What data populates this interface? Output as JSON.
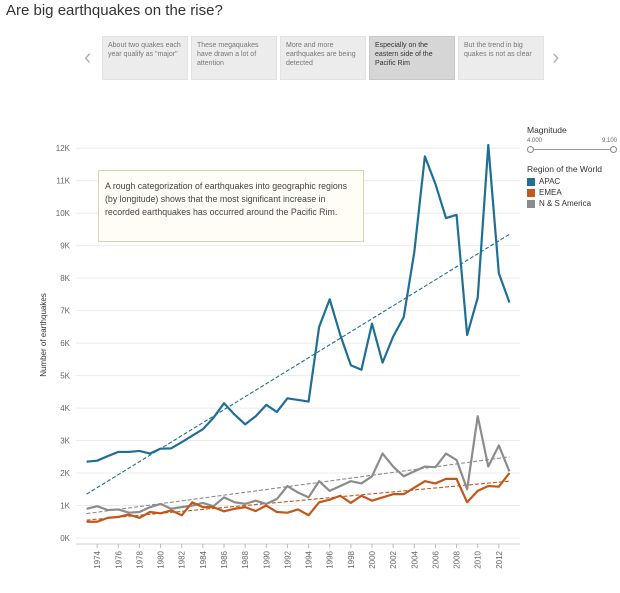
{
  "page": {
    "title": "Are big earthquakes on the rise?"
  },
  "story": {
    "prev_icon": "chevron-left-icon",
    "next_icon": "chevron-right-icon",
    "points": [
      {
        "text": "About two quakes each year qualify as \"major\"",
        "active": false
      },
      {
        "text": "These megaquakes have drawn a lot of attention",
        "active": false
      },
      {
        "text": "More and more earthquakes are being detected",
        "active": false
      },
      {
        "text": "Especially on the eastern side of the Pacific Rim",
        "active": true
      },
      {
        "text": "But the trend in big quakes is not as clear",
        "active": false
      }
    ]
  },
  "legend": {
    "magnitude_title": "Magnitude",
    "magnitude_min": "4.000",
    "magnitude_max": "9.100",
    "region_title": "Region of the World",
    "regions": [
      {
        "name": "APAC",
        "color": "#1f6e96"
      },
      {
        "name": "EMEA",
        "color": "#c2571a"
      },
      {
        "name": "N & S America",
        "color": "#8c8c8c"
      }
    ]
  },
  "annotation": {
    "text": "A rough categorization of earthquakes into geographic regions (by longitude) shows that the most significant increase in recorded earthquakes has occurred around the Pacific Rim."
  },
  "chart_data": {
    "type": "line",
    "ylabel": "Number of earthquakes",
    "xlabel": "",
    "ylim": [
      0,
      12500
    ],
    "yticks": [
      0,
      1000,
      2000,
      3000,
      4000,
      5000,
      6000,
      7000,
      8000,
      9000,
      10000,
      11000,
      12000
    ],
    "ytick_labels": [
      "0K",
      "1K",
      "2K",
      "3K",
      "4K",
      "5K",
      "6K",
      "7K",
      "8K",
      "9K",
      "10K",
      "11K",
      "12K"
    ],
    "xlim": [
      1972,
      2014
    ],
    "xticks": [
      1974,
      1976,
      1978,
      1980,
      1982,
      1984,
      1986,
      1988,
      1990,
      1992,
      1994,
      1996,
      1998,
      2000,
      2002,
      2004,
      2006,
      2008,
      2010,
      2012
    ],
    "grid": "horizontal",
    "x": [
      1973,
      1974,
      1975,
      1976,
      1977,
      1978,
      1979,
      1980,
      1981,
      1982,
      1983,
      1984,
      1985,
      1986,
      1987,
      1988,
      1989,
      1990,
      1991,
      1992,
      1993,
      1994,
      1995,
      1996,
      1997,
      1998,
      1999,
      2000,
      2001,
      2002,
      2003,
      2004,
      2005,
      2006,
      2007,
      2008,
      2009,
      2010,
      2011,
      2012,
      2013
    ],
    "series": [
      {
        "name": "APAC",
        "color": "#1f6e96",
        "values": [
          2350,
          2380,
          2520,
          2650,
          2650,
          2680,
          2600,
          2750,
          2760,
          2950,
          3150,
          3350,
          3700,
          4150,
          3800,
          3500,
          3750,
          4100,
          3880,
          4300,
          4250,
          4200,
          6500,
          7350,
          6250,
          5320,
          5180,
          6600,
          5400,
          6200,
          6800,
          8800,
          11750,
          10900,
          9850,
          9950,
          6250,
          7400,
          12100,
          8150,
          7250
        ]
      },
      {
        "name": "EMEA",
        "color": "#c2571a",
        "values": [
          500,
          500,
          620,
          650,
          720,
          620,
          800,
          760,
          850,
          700,
          1100,
          950,
          950,
          820,
          900,
          950,
          830,
          1000,
          800,
          780,
          880,
          700,
          1100,
          1180,
          1300,
          1080,
          1300,
          1150,
          1250,
          1350,
          1350,
          1550,
          1750,
          1680,
          1820,
          1820,
          1100,
          1450,
          1600,
          1580,
          2000
        ]
      },
      {
        "name": "N & S America",
        "color": "#8c8c8c",
        "values": [
          900,
          980,
          860,
          880,
          780,
          800,
          950,
          1050,
          900,
          950,
          1000,
          1080,
          980,
          1250,
          1100,
          1050,
          1150,
          1050,
          1200,
          1600,
          1400,
          1250,
          1750,
          1450,
          1600,
          1750,
          1680,
          1900,
          2600,
          2200,
          1900,
          2050,
          2200,
          2180,
          2600,
          2400,
          1500,
          3750,
          2200,
          2850,
          2050
        ]
      }
    ],
    "trendlines": [
      {
        "name": "APAC",
        "color": "#1f6e96",
        "start": [
          1973,
          1350
        ],
        "end": [
          2013,
          9350
        ]
      },
      {
        "name": "EMEA",
        "color": "#c2571a",
        "start": [
          1973,
          550
        ],
        "end": [
          2013,
          1750
        ]
      },
      {
        "name": "N & S America",
        "color": "#8c8c8c",
        "start": [
          1973,
          750
        ],
        "end": [
          2013,
          2500
        ]
      }
    ]
  }
}
